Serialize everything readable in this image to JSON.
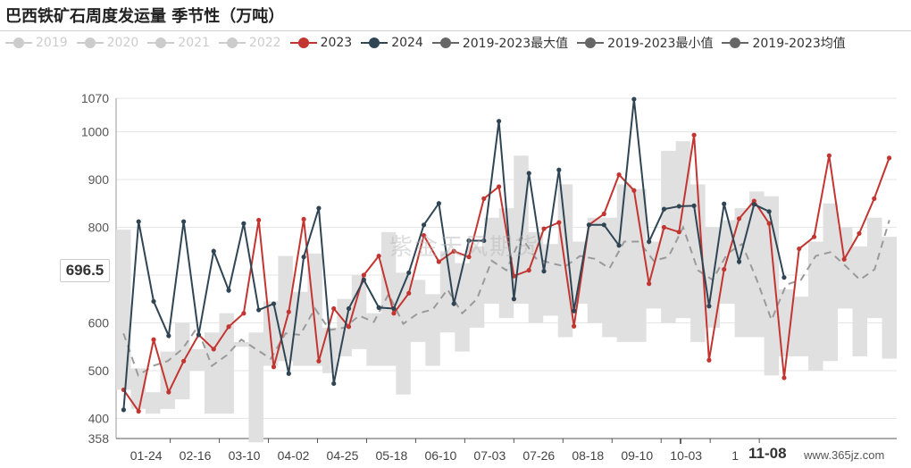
{
  "title": "巴西铁矿石周度发运量 季节性（万吨）",
  "pointer_value": "696.5",
  "pointer_date": "11-08",
  "watermark": "紫金天风期货",
  "site": "www.365jz.com",
  "colors": {
    "2019": "#cccccc",
    "2020": "#cccccc",
    "2021": "#cccccc",
    "2022": "#cccccc",
    "2023": "#c23531",
    "2024": "#2f4554",
    "band": "#e0e0e0",
    "avg": "#9a9a9a"
  },
  "chart_data": {
    "type": "line",
    "title": "巴西铁矿石周度发运量 季节性（万吨）",
    "y_ticks": [
      358,
      400,
      500,
      600,
      700,
      800,
      900,
      1000,
      1070
    ],
    "ylim": [
      358,
      1070
    ],
    "x_tick_labels": [
      "01-24",
      "02-16",
      "03-10",
      "04-02",
      "04-25",
      "05-18",
      "06-10",
      "07-03",
      "07-26",
      "08-18",
      "09-10",
      "10-03",
      "1",
      "11-08"
    ],
    "legend": [
      {
        "name": "2019",
        "active": false
      },
      {
        "name": "2020",
        "active": false
      },
      {
        "name": "2021",
        "active": false
      },
      {
        "name": "2022",
        "active": false
      },
      {
        "name": "2023",
        "active": true
      },
      {
        "name": "2024",
        "active": true
      },
      {
        "name": "2019-2023最大值",
        "active": true
      },
      {
        "name": "2019-2023最小值",
        "active": true
      },
      {
        "name": "2019-2023均值",
        "active": true
      }
    ],
    "series": [
      {
        "name": "2023",
        "values": [
          460,
          415,
          565,
          455,
          520,
          575,
          545,
          592,
          620,
          815,
          508,
          623,
          817,
          520,
          630,
          592,
          700,
          740,
          620,
          662,
          783,
          728,
          750,
          738,
          860,
          885,
          698,
          710,
          797,
          810,
          593,
          805,
          828,
          910,
          877,
          682,
          800,
          790,
          993,
          522,
          712,
          818,
          855,
          808,
          485,
          755,
          780,
          950,
          733,
          787,
          860,
          945
        ]
      },
      {
        "name": "2024",
        "values": [
          418,
          812,
          645,
          573,
          812,
          575,
          750,
          668,
          808,
          627,
          640,
          494,
          738,
          840,
          473,
          630,
          690,
          632,
          630,
          705,
          805,
          850,
          640,
          772,
          772,
          1022,
          650,
          913,
          708,
          920,
          625,
          805,
          805,
          762,
          1068,
          770,
          838,
          844,
          845,
          635,
          849,
          728,
          848,
          833,
          695
        ]
      },
      {
        "name": "2019-2023最大值",
        "values": [
          795,
          505,
          455,
          540,
          600,
          545,
          580,
          620,
          560,
          580,
          645,
          740,
          665,
          745,
          590,
          650,
          700,
          620,
          790,
          705,
          690,
          660,
          750,
          725,
          760,
          820,
          840,
          950,
          790,
          765,
          890,
          770,
          820,
          820,
          890,
          880,
          770,
          960,
          980,
          890,
          800,
          815,
          840,
          875,
          865,
          670,
          655,
          770,
          850,
          800,
          760,
          820,
          780
        ]
      },
      {
        "name": "2019-2023最小值",
        "values": [
          460,
          420,
          410,
          420,
          440,
          500,
          410,
          410,
          550,
          350,
          510,
          520,
          510,
          510,
          495,
          530,
          545,
          510,
          510,
          450,
          560,
          510,
          580,
          540,
          590,
          640,
          610,
          640,
          600,
          615,
          570,
          640,
          600,
          570,
          560,
          560,
          630,
          600,
          610,
          560,
          590,
          640,
          570,
          570,
          490,
          530,
          530,
          500,
          520,
          630,
          530,
          610,
          525
        ]
      },
      {
        "name": "2019-2023均值",
        "values": [
          578,
          490,
          510,
          520,
          545,
          590,
          510,
          532,
          565,
          545,
          525,
          578,
          575,
          630,
          585,
          590,
          615,
          602,
          660,
          598,
          620,
          628,
          670,
          620,
          650,
          730,
          710,
          780,
          735,
          725,
          718,
          740,
          734,
          714,
          770,
          770,
          730,
          738,
          800,
          710,
          690,
          745,
          765,
          690,
          606,
          680,
          690,
          740,
          748,
          720,
          690,
          712,
          815
        ]
      }
    ]
  }
}
